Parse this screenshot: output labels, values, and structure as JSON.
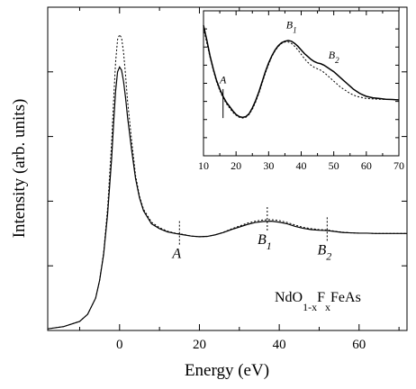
{
  "chart_data": [
    {
      "type": "line",
      "panel": "main",
      "xlabel": "Energy (eV)",
      "ylabel": "Intensity (arb. units)",
      "xlim": [
        -18,
        72
      ],
      "ylim": [
        0,
        1.0
      ],
      "x_ticks": [
        0,
        20,
        40,
        60
      ],
      "y_ticks_labeled": false,
      "grid": false,
      "annotation": "NdO1-xFxFeAs",
      "annotation_parts": {
        "base1": "NdO",
        "sub1": "1-x",
        "base2": "F",
        "sub2": "x",
        "base3": "FeAs"
      },
      "markers": [
        {
          "label": "A",
          "sub": "",
          "x": 15
        },
        {
          "label": "B",
          "sub": "1",
          "x": 37
        },
        {
          "label": "B",
          "sub": "2",
          "x": 52
        }
      ],
      "series": [
        {
          "style": "solid",
          "x": [
            -18,
            -14,
            -10,
            -8,
            -6,
            -5,
            -4,
            -3,
            -2,
            -1.5,
            -1,
            -0.5,
            0,
            0.5,
            1,
            1.5,
            2,
            3,
            4,
            5,
            6,
            8,
            10,
            12,
            14,
            16,
            18,
            20,
            22,
            24,
            26,
            28,
            30,
            32,
            34,
            36,
            38,
            40,
            42,
            44,
            46,
            48,
            50,
            52,
            54,
            56,
            58,
            60,
            62,
            64,
            66,
            68,
            70,
            72
          ],
          "y": [
            0.005,
            0.012,
            0.028,
            0.05,
            0.1,
            0.155,
            0.235,
            0.36,
            0.53,
            0.64,
            0.74,
            0.8,
            0.815,
            0.805,
            0.77,
            0.72,
            0.66,
            0.56,
            0.47,
            0.41,
            0.37,
            0.33,
            0.315,
            0.305,
            0.3,
            0.296,
            0.292,
            0.29,
            0.291,
            0.296,
            0.303,
            0.312,
            0.32,
            0.328,
            0.334,
            0.337,
            0.338,
            0.335,
            0.33,
            0.322,
            0.316,
            0.312,
            0.31,
            0.309,
            0.306,
            0.303,
            0.302,
            0.301,
            0.301,
            0.3,
            0.3,
            0.3,
            0.3,
            0.3
          ]
        },
        {
          "style": "dotted",
          "x": [
            -18,
            -14,
            -10,
            -8,
            -6,
            -5,
            -4,
            -3,
            -2,
            -1.5,
            -1,
            -0.5,
            0,
            0.5,
            1,
            1.5,
            2,
            3,
            4,
            5,
            6,
            8,
            10,
            12,
            14,
            16,
            18,
            20,
            22,
            24,
            26,
            28,
            30,
            32,
            34,
            36,
            38,
            40,
            42,
            44,
            46,
            48,
            50,
            52,
            54,
            56,
            58,
            60,
            62,
            64,
            66,
            68,
            70,
            72
          ],
          "y": [
            0.005,
            0.012,
            0.028,
            0.05,
            0.1,
            0.155,
            0.24,
            0.38,
            0.58,
            0.71,
            0.83,
            0.9,
            0.915,
            0.905,
            0.86,
            0.79,
            0.71,
            0.59,
            0.48,
            0.415,
            0.375,
            0.335,
            0.318,
            0.307,
            0.301,
            0.297,
            0.292,
            0.29,
            0.291,
            0.296,
            0.304,
            0.314,
            0.323,
            0.332,
            0.338,
            0.342,
            0.343,
            0.34,
            0.334,
            0.326,
            0.319,
            0.315,
            0.312,
            0.311,
            0.307,
            0.304,
            0.302,
            0.301,
            0.301,
            0.3,
            0.3,
            0.3,
            0.3,
            0.3
          ]
        }
      ]
    },
    {
      "type": "line",
      "panel": "inset",
      "xlabel": "",
      "ylabel": "",
      "xlim": [
        10,
        70
      ],
      "ylim": [
        0,
        1.0
      ],
      "x_ticks": [
        10,
        20,
        30,
        40,
        50,
        60,
        70
      ],
      "grid": false,
      "markers": [
        {
          "label": "A",
          "sub": "",
          "x": 16,
          "label_y": 0.5
        },
        {
          "label": "B",
          "sub": "1",
          "x": 37,
          "label_y": 0.88
        },
        {
          "label": "B",
          "sub": "2",
          "x": 50,
          "label_y": 0.67
        }
      ],
      "series": [
        {
          "style": "solid",
          "x": [
            10,
            11,
            12,
            13,
            14,
            15,
            16,
            17,
            18,
            19,
            20,
            21,
            22,
            23,
            24,
            25,
            26,
            27,
            28,
            29,
            30,
            31,
            32,
            33,
            34,
            35,
            36,
            37,
            38,
            39,
            40,
            41,
            42,
            43,
            44,
            45,
            46,
            47,
            48,
            49,
            50,
            51,
            52,
            53,
            54,
            55,
            56,
            57,
            58,
            59,
            60,
            62,
            64,
            66,
            68,
            70
          ],
          "y": [
            0.9,
            0.8,
            0.69,
            0.6,
            0.52,
            0.46,
            0.41,
            0.37,
            0.34,
            0.31,
            0.285,
            0.27,
            0.265,
            0.27,
            0.29,
            0.33,
            0.38,
            0.44,
            0.51,
            0.58,
            0.64,
            0.69,
            0.73,
            0.76,
            0.78,
            0.79,
            0.795,
            0.79,
            0.775,
            0.755,
            0.73,
            0.705,
            0.685,
            0.665,
            0.65,
            0.64,
            0.635,
            0.625,
            0.61,
            0.595,
            0.58,
            0.56,
            0.54,
            0.52,
            0.5,
            0.48,
            0.46,
            0.445,
            0.43,
            0.42,
            0.41,
            0.4,
            0.395,
            0.39,
            0.388,
            0.385
          ]
        },
        {
          "style": "dotted",
          "x": [
            10,
            11,
            12,
            13,
            14,
            15,
            16,
            17,
            18,
            19,
            20,
            21,
            22,
            23,
            24,
            25,
            26,
            27,
            28,
            29,
            30,
            31,
            32,
            33,
            34,
            35,
            36,
            37,
            38,
            39,
            40,
            41,
            42,
            43,
            44,
            45,
            46,
            47,
            48,
            49,
            50,
            51,
            52,
            53,
            54,
            55,
            56,
            57,
            58,
            59,
            60,
            62,
            64,
            66,
            68,
            70
          ],
          "y": [
            0.88,
            0.78,
            0.68,
            0.59,
            0.51,
            0.45,
            0.4,
            0.36,
            0.33,
            0.3,
            0.28,
            0.265,
            0.26,
            0.265,
            0.285,
            0.32,
            0.37,
            0.43,
            0.5,
            0.57,
            0.63,
            0.685,
            0.725,
            0.755,
            0.775,
            0.785,
            0.785,
            0.775,
            0.755,
            0.73,
            0.7,
            0.67,
            0.645,
            0.625,
            0.61,
            0.6,
            0.59,
            0.575,
            0.555,
            0.535,
            0.515,
            0.495,
            0.475,
            0.46,
            0.445,
            0.43,
            0.42,
            0.41,
            0.405,
            0.4,
            0.395,
            0.392,
            0.39,
            0.389,
            0.388,
            0.386
          ]
        }
      ]
    }
  ]
}
